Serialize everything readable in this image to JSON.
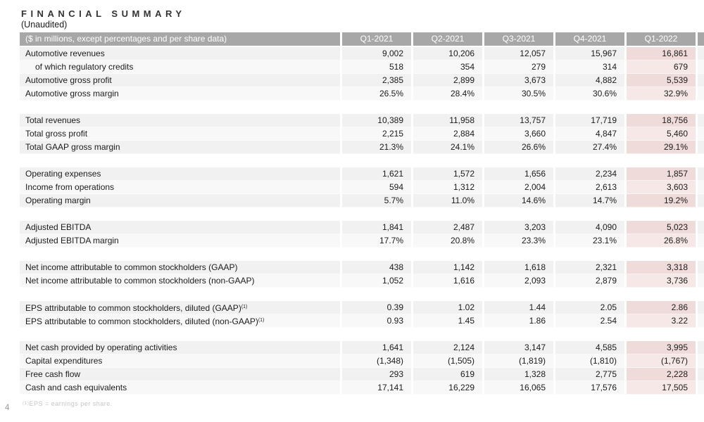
{
  "title": "FINANCIAL SUMMARY",
  "subtitle": "(Unaudited)",
  "page_number": "4",
  "footnote": {
    "sup": "(1)",
    "text": "EPS = earnings per share."
  },
  "colors": {
    "header_bg": "#a7a7a7",
    "row_bg": "#f1f1f1",
    "row_bg_alt": "#f8f8f8",
    "highlight_bg": "#efdbd9",
    "highlight_bg_alt": "#f6e8e7",
    "header_text": "#ffffff",
    "body_text": "#1b1b1b"
  },
  "table": {
    "header_label": "($ in millions, except percentages and per share data)",
    "columns": [
      "Q1-2021",
      "Q2-2021",
      "Q3-2021",
      "Q4-2021",
      "Q1-2022"
    ],
    "highlight_column": "Q1-2022",
    "sections": [
      {
        "rows": [
          {
            "label": "Automotive revenues",
            "values": [
              "9,002",
              "10,206",
              "12,057",
              "15,967",
              "16,861"
            ]
          },
          {
            "label": "of which regulatory credits",
            "indent": true,
            "values": [
              "518",
              "354",
              "279",
              "314",
              "679"
            ]
          },
          {
            "label": "Automotive gross profit",
            "values": [
              "2,385",
              "2,899",
              "3,673",
              "4,882",
              "5,539"
            ]
          },
          {
            "label": "Automotive gross margin",
            "values": [
              "26.5%",
              "28.4%",
              "30.5%",
              "30.6%",
              "32.9%"
            ]
          }
        ]
      },
      {
        "rows": [
          {
            "label": "Total revenues",
            "values": [
              "10,389",
              "11,958",
              "13,757",
              "17,719",
              "18,756"
            ]
          },
          {
            "label": "Total gross profit",
            "values": [
              "2,215",
              "2,884",
              "3,660",
              "4,847",
              "5,460"
            ]
          },
          {
            "label": "Total GAAP gross margin",
            "values": [
              "21.3%",
              "24.1%",
              "26.6%",
              "27.4%",
              "29.1%"
            ]
          }
        ]
      },
      {
        "rows": [
          {
            "label": "Operating expenses",
            "values": [
              "1,621",
              "1,572",
              "1,656",
              "2,234",
              "1,857"
            ]
          },
          {
            "label": "Income from operations",
            "values": [
              "594",
              "1,312",
              "2,004",
              "2,613",
              "3,603"
            ]
          },
          {
            "label": "Operating margin",
            "values": [
              "5.7%",
              "11.0%",
              "14.6%",
              "14.7%",
              "19.2%"
            ]
          }
        ]
      },
      {
        "rows": [
          {
            "label": "Adjusted EBITDA",
            "values": [
              "1,841",
              "2,487",
              "3,203",
              "4,090",
              "5,023"
            ]
          },
          {
            "label": "Adjusted EBITDA margin",
            "values": [
              "17.7%",
              "20.8%",
              "23.3%",
              "23.1%",
              "26.8%"
            ]
          }
        ]
      },
      {
        "rows": [
          {
            "label": "Net income attributable to common stockholders (GAAP)",
            "values": [
              "438",
              "1,142",
              "1,618",
              "2,321",
              "3,318"
            ]
          },
          {
            "label": "Net income attributable to common stockholders (non-GAAP)",
            "values": [
              "1,052",
              "1,616",
              "2,093",
              "2,879",
              "3,736"
            ]
          }
        ]
      },
      {
        "rows": [
          {
            "label": "EPS attributable to common stockholders, diluted (GAAP)",
            "sup": "(1)",
            "values": [
              "0.39",
              "1.02",
              "1.44",
              "2.05",
              "2.86"
            ]
          },
          {
            "label": "EPS attributable to common stockholders, diluted (non-GAAP)",
            "sup": "(1)",
            "values": [
              "0.93",
              "1.45",
              "1.86",
              "2.54",
              "3.22"
            ]
          }
        ]
      },
      {
        "rows": [
          {
            "label": "Net cash provided by operating activities",
            "values": [
              "1,641",
              "2,124",
              "3,147",
              "4,585",
              "3,995"
            ]
          },
          {
            "label": "Capital expenditures",
            "values": [
              "(1,348)",
              "(1,505)",
              "(1,819)",
              "(1,810)",
              "(1,767)"
            ]
          },
          {
            "label": "Free cash flow",
            "values": [
              "293",
              "619",
              "1,328",
              "2,775",
              "2,228"
            ]
          },
          {
            "label": "Cash and cash equivalents",
            "values": [
              "17,141",
              "16,229",
              "16,065",
              "17,576",
              "17,505"
            ]
          }
        ]
      }
    ]
  }
}
